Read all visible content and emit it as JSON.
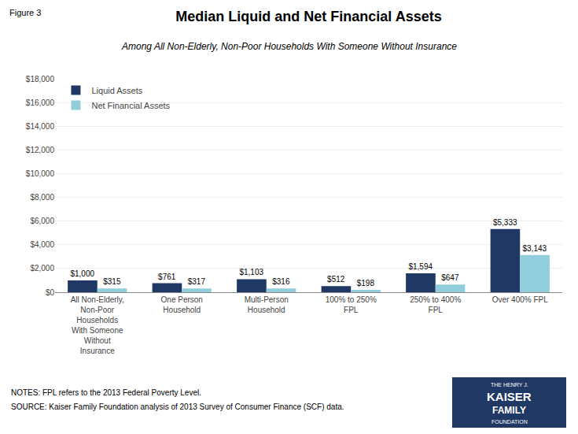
{
  "chart_data": {
    "type": "bar",
    "title": "Median Liquid and Net Financial Assets",
    "subtitle": "Among All Non-Elderly, Non-Poor Households With Someone Without Insurance",
    "annotations": [
      "Figure 3",
      "NOTES: FPL refers to the 2013 Federal Poverty Level.",
      "SOURCE: Kaiser Family Foundation analysis of 2013 Survey of Consumer Finance (SCF) data.",
      "THE HENRY J.",
      "KAISER",
      "FAMILY",
      "FOUNDATION"
    ],
    "categories": [
      "All Non-Elderly,\nNon-Poor\nHouseholds\nWith Someone\nWithout\nInsurance",
      "One Person\nHousehold",
      "Multi-Person\nHousehold",
      "100% to 250%\nFPL",
      "250% to 400%\nFPL",
      "Over 400% FPL"
    ],
    "series": [
      {
        "name": "Liquid Assets",
        "color": "#1F3864",
        "values": [
          1000,
          761,
          1103,
          512,
          1594,
          5333
        ],
        "value_labels": [
          "$1,000",
          "$761",
          "$1,103",
          "$512",
          "$1,594",
          "$5,333"
        ]
      },
      {
        "name": "Net Financial Assets",
        "color": "#92CDDC",
        "values": [
          315,
          317,
          316,
          198,
          647,
          3143
        ],
        "value_labels": [
          "$315",
          "$317",
          "$316",
          "$198",
          "$647",
          "$3,143"
        ]
      }
    ],
    "ylim": [
      0,
      18000
    ],
    "yticks": [
      {
        "value": 0,
        "label": "$0"
      },
      {
        "value": 2000,
        "label": "$2,000"
      },
      {
        "value": 4000,
        "label": "$4,000"
      },
      {
        "value": 6000,
        "label": "$6,000"
      },
      {
        "value": 8000,
        "label": "$8,000"
      },
      {
        "value": 10000,
        "label": "$10,000"
      },
      {
        "value": 12000,
        "label": "$12,000"
      },
      {
        "value": 14000,
        "label": "$14,000"
      },
      {
        "value": 16000,
        "label": "$16,000"
      },
      {
        "value": 18000,
        "label": "$18,000"
      }
    ],
    "grid": true,
    "legend": "upper left",
    "data_labels": true
  }
}
